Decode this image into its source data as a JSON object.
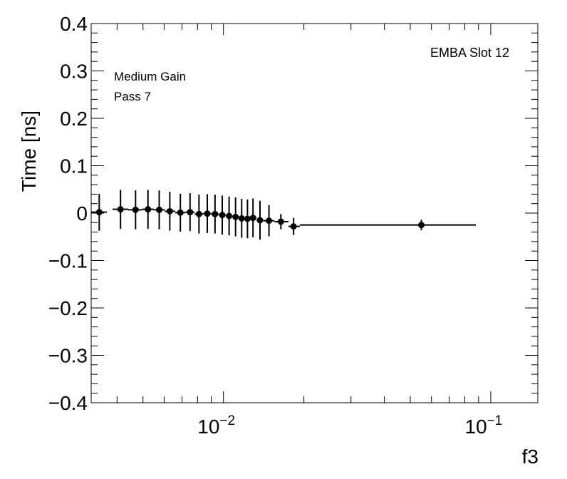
{
  "chart_data": {
    "type": "scatter",
    "xlabel": "f3",
    "ylabel": "Time [ns]",
    "xscale": "log",
    "xlim": [
      0.0032,
      0.15
    ],
    "ylim": [
      -0.4,
      0.4
    ],
    "grid": false,
    "y_tick_labels": [
      "−0.4",
      "−0.3",
      "−0.2",
      "−0.1",
      "0",
      "0.1",
      "0.2",
      "0.3",
      "0.4"
    ],
    "x_tick_labels": [
      {
        "base": "10",
        "exp": "−2"
      },
      {
        "base": "10",
        "exp": "−1"
      }
    ],
    "annotations": {
      "top_right": "EMBA Slot 12",
      "gain": "Medium Gain",
      "pass": "Pass 7"
    },
    "series": [
      {
        "points": [
          {
            "x": 0.00343,
            "y": 0.002,
            "xlo": 0.00321,
            "xhi": 0.00366,
            "err": 0.039
          },
          {
            "x": 0.00412,
            "y": 0.008,
            "xlo": 0.00385,
            "xhi": 0.0044,
            "err": 0.041
          },
          {
            "x": 0.00469,
            "y": 0.007,
            "xlo": 0.0044,
            "xhi": 0.00497,
            "err": 0.041
          },
          {
            "x": 0.00522,
            "y": 0.008,
            "xlo": 0.00497,
            "xhi": 0.00548,
            "err": 0.041
          },
          {
            "x": 0.00575,
            "y": 0.007,
            "xlo": 0.00548,
            "xhi": 0.00603,
            "err": 0.041
          },
          {
            "x": 0.0063,
            "y": 0.004,
            "xlo": 0.00603,
            "xhi": 0.0066,
            "err": 0.041
          },
          {
            "x": 0.0069,
            "y": 0.001,
            "xlo": 0.0066,
            "xhi": 0.0072,
            "err": 0.04
          },
          {
            "x": 0.0075,
            "y": 0.002,
            "xlo": 0.0072,
            "xhi": 0.0078,
            "err": 0.04
          },
          {
            "x": 0.0081,
            "y": -0.002,
            "xlo": 0.0078,
            "xhi": 0.0084,
            "err": 0.041
          },
          {
            "x": 0.0087,
            "y": -0.001,
            "xlo": 0.0084,
            "xhi": 0.009,
            "err": 0.041
          },
          {
            "x": 0.0093,
            "y": -0.002,
            "xlo": 0.009,
            "xhi": 0.0096,
            "err": 0.041
          },
          {
            "x": 0.0099,
            "y": -0.004,
            "xlo": 0.0096,
            "xhi": 0.0102,
            "err": 0.041
          },
          {
            "x": 0.0105,
            "y": -0.006,
            "xlo": 0.0102,
            "xhi": 0.0108,
            "err": 0.041
          },
          {
            "x": 0.0111,
            "y": -0.008,
            "xlo": 0.0108,
            "xhi": 0.0114,
            "err": 0.041
          },
          {
            "x": 0.0117,
            "y": -0.011,
            "xlo": 0.0114,
            "xhi": 0.012,
            "err": 0.041
          },
          {
            "x": 0.0123,
            "y": -0.012,
            "xlo": 0.012,
            "xhi": 0.0126,
            "err": 0.041
          },
          {
            "x": 0.0129,
            "y": -0.01,
            "xlo": 0.0126,
            "xhi": 0.0133,
            "err": 0.041
          },
          {
            "x": 0.0137,
            "y": -0.015,
            "xlo": 0.0133,
            "xhi": 0.0141,
            "err": 0.041
          },
          {
            "x": 0.0148,
            "y": -0.016,
            "xlo": 0.0141,
            "xhi": 0.0155,
            "err": 0.033
          },
          {
            "x": 0.0164,
            "y": -0.018,
            "xlo": 0.0155,
            "xhi": 0.0175,
            "err": 0.016
          },
          {
            "x": 0.0183,
            "y": -0.028,
            "xlo": 0.0175,
            "xhi": 0.0193,
            "err": 0.018
          },
          {
            "x": 0.055,
            "y": -0.025,
            "xlo": 0.0193,
            "xhi": 0.088,
            "err": 0.011
          }
        ]
      }
    ]
  }
}
